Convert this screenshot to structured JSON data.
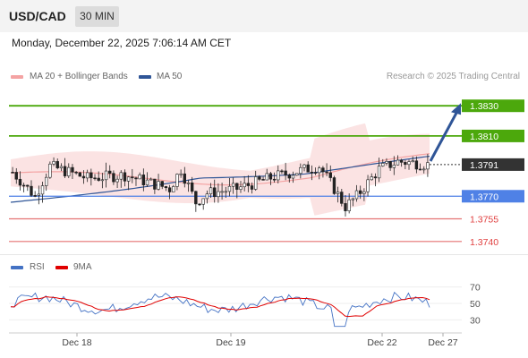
{
  "header": {
    "symbol": "USD/CAD",
    "timeframe": "30 MIN"
  },
  "timestamp": "Monday, December 22, 2025 7:06:14 AM CET",
  "legend_main": [
    {
      "label": "MA 20 + Bollinger Bands",
      "color": "#f4a3a3"
    },
    {
      "label": "MA 50",
      "color": "#2f5597"
    }
  ],
  "copyright": "Research © 2025 Trading Central",
  "legend_rsi": [
    {
      "label": "RSI",
      "color": "#4472c4"
    },
    {
      "label": "9MA",
      "color": "#e00000"
    }
  ],
  "chart_data": {
    "type": "candlestick",
    "price_range": [
      1.3728,
      1.3842
    ],
    "rsi_range": [
      14,
      86
    ],
    "x_labels": [
      "Dec 18",
      "Dec 19",
      "Dec 22",
      "Dec 27"
    ],
    "rsi_ticks": [
      "70",
      "50",
      "30"
    ],
    "levels": [
      {
        "label": "1.3830",
        "value": 1.383,
        "color": "#4ca80c",
        "kind": "resistance"
      },
      {
        "label": "1.3810",
        "value": 1.381,
        "color": "#4ca80c",
        "kind": "resistance"
      },
      {
        "label": "1.3791",
        "value": 1.3791,
        "color": "#333333",
        "kind": "last"
      },
      {
        "label": "1.3770",
        "value": 1.377,
        "color": "#4f81e6",
        "kind": "pivot"
      },
      {
        "label": "1.3755",
        "value": 1.3755,
        "color": "#e57373",
        "kind": "support"
      },
      {
        "label": "1.3740",
        "value": 1.374,
        "color": "#e57373",
        "kind": "support"
      }
    ],
    "forecast_target": 1.383
  }
}
